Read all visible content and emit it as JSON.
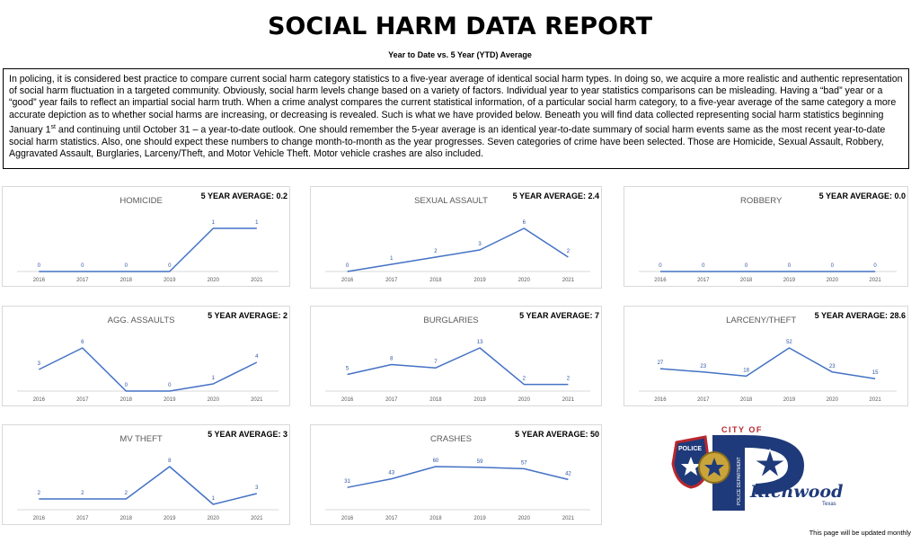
{
  "header": {
    "title": "SOCIAL HARM DATA REPORT",
    "subtitle": "Year to Date vs. 5 Year (YTD) Average"
  },
  "intro": {
    "before_sup": "In policing, it is considered best practice to compare current social harm category statistics to a five-year average of identical social harm types. In doing so, we acquire a more realistic and authentic representation of social harm fluctuation in a targeted community. Obviously, social harm levels change based on a variety of factors. Individual year to year statistics comparisons can be misleading. Having a “bad” year or a “good” year fails to reflect an impartial social harm truth. When a crime analyst compares the current statistical information, of a particular social harm category, to a five-year average of the same category a more accurate depiction as to whether social harms are increasing, or decreasing is revealed. Such is what we have provided below. Beneath you will find data collected representing social harm statistics beginning January 1",
    "sup": "st",
    "after_sup": " and continuing until October 31 – a year-to-date outlook. One should remember the 5-year average is an identical year-to-date summary of social harm events same as the most recent year-to-date social harm statistics. Also, one should expect these numbers to change month-to-month as the year progresses. Seven categories of crime have been selected. Those are Homicide, Sexual Assault, Robbery, Aggravated Assault, Burglaries, Larceny/Theft, and Motor Vehicle Theft. Motor vehicle crashes are also included."
  },
  "footer": {
    "note": "This page will be updated monthly"
  },
  "logo": {
    "city_of": "CITY OF",
    "city_name": "Richwood",
    "state": "Texas",
    "badge_text": "POLICE",
    "side_text": "POLICE DEPARTMENT"
  },
  "colors": {
    "line": "#4472c4",
    "label": "#2f55a4",
    "axis": "#d9d9d9",
    "title": "#595959"
  },
  "chart_data": [
    {
      "type": "line",
      "title": "HOMICIDE",
      "average_label": "5 YEAR AVERAGE: 0.2",
      "x": [
        "2016",
        "2017",
        "2018",
        "2019",
        "2020",
        "2021"
      ],
      "values": [
        0,
        0,
        0,
        0,
        1,
        1
      ],
      "data_labels": [
        "0",
        "0",
        "0",
        "0",
        "1",
        "1"
      ]
    },
    {
      "type": "line",
      "title": "SEXUAL ASSAULT",
      "average_label": "5 YEAR AVERAGE: 2.4",
      "x": [
        "2016",
        "2017",
        "2018",
        "2019",
        "2020",
        "2021"
      ],
      "values": [
        0,
        1,
        2,
        3,
        6,
        2
      ],
      "data_labels": [
        "0",
        "1",
        "2",
        "3",
        "6",
        "2"
      ]
    },
    {
      "type": "line",
      "title": "ROBBERY",
      "average_label": "5 YEAR AVERAGE: 0.0",
      "x": [
        "2016",
        "2017",
        "2018",
        "2019",
        "2020",
        "2021"
      ],
      "values": [
        0,
        0,
        0,
        0,
        0,
        0
      ],
      "data_labels": [
        "0",
        "0",
        "0",
        "0",
        "0",
        "0"
      ]
    },
    {
      "type": "line",
      "title": "AGG. ASSAULTS",
      "average_label": "5 YEAR AVERAGE: 2",
      "x": [
        "2016",
        "2017",
        "2018",
        "2019",
        "2020",
        "2021"
      ],
      "values": [
        3,
        6,
        0,
        0,
        1,
        4
      ],
      "data_labels": [
        "3",
        "6",
        "0",
        "0",
        "1",
        "4"
      ]
    },
    {
      "type": "line",
      "title": "BURGLARIES",
      "average_label": "5 YEAR AVERAGE: 7",
      "x": [
        "2016",
        "2017",
        "2018",
        "2019",
        "2020",
        "2021"
      ],
      "values": [
        5,
        8,
        7,
        13,
        2,
        2
      ],
      "data_labels": [
        "5",
        "8",
        "7",
        "13",
        "2",
        "2"
      ]
    },
    {
      "type": "line",
      "title": "LARCENY/THEFT",
      "average_label": "5 YEAR AVERAGE: 28.6",
      "x": [
        "2016",
        "2017",
        "2018",
        "2019",
        "2020",
        "2021"
      ],
      "values": [
        27,
        23,
        18,
        52,
        23,
        15
      ],
      "data_labels": [
        "27",
        "23",
        "18",
        "52",
        "23",
        "15"
      ]
    },
    {
      "type": "line",
      "title": "MV THEFT",
      "average_label": "5 YEAR AVERAGE: 3",
      "x": [
        "2016",
        "2017",
        "2018",
        "2019",
        "2020",
        "2021"
      ],
      "values": [
        2,
        2,
        2,
        8,
        1,
        3
      ],
      "data_labels": [
        "2",
        "2",
        "2",
        "8",
        "1",
        "3"
      ]
    },
    {
      "type": "line",
      "title": "CRASHES",
      "average_label": "5 YEAR AVERAGE: 50",
      "x": [
        "2016",
        "2017",
        "2018",
        "2019",
        "2020",
        "2021"
      ],
      "values": [
        31,
        43,
        60,
        59,
        57,
        42
      ],
      "data_labels": [
        "31",
        "43",
        "60",
        "59",
        "57",
        "42"
      ]
    }
  ]
}
